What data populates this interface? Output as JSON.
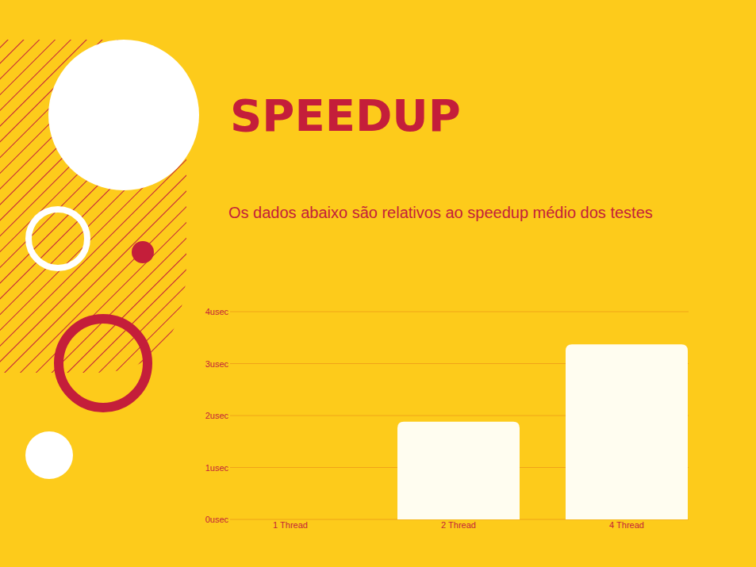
{
  "chart_data": {
    "type": "bar",
    "title": "SPEEDUP",
    "subtitle": "Os dados abaixo são relativos ao speedup médio dos testes",
    "categories": [
      "1 Thread",
      "2 Thread",
      "4 Thread"
    ],
    "values": [
      0,
      1.88,
      3.37
    ],
    "color": "#fffdf0",
    "ylim": [
      0,
      4
    ],
    "yticks": [
      {
        "value": 0,
        "label": "0usec"
      },
      {
        "value": 1,
        "label": "1usec"
      },
      {
        "value": 2,
        "label": "2usec"
      },
      {
        "value": 3,
        "label": "3usec"
      },
      {
        "value": 4,
        "label": "4usec"
      }
    ],
    "grid": true
  }
}
